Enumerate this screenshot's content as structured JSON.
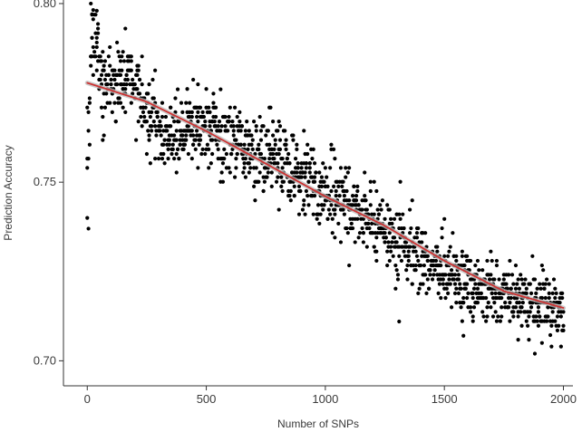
{
  "chart_data": {
    "type": "scatter",
    "title": "",
    "xlabel": "Number of SNPs",
    "ylabel": "Prediction Accuracy",
    "xlim": [
      -100,
      2040
    ],
    "ylim": [
      0.693,
      0.801
    ],
    "xticks": [
      0,
      500,
      1000,
      1500,
      2000
    ],
    "yticks": [
      0.7,
      0.75,
      0.8
    ],
    "xtick_labels": [
      "0",
      "500",
      "1000",
      "1500",
      "2000"
    ],
    "ytick_labels": [
      "0.70",
      "0.75",
      "0.80"
    ],
    "grid": false,
    "legend": "none",
    "colors": {
      "points": "#000000",
      "trend": "#cc3333",
      "band": "#bbbbbb"
    },
    "series": [
      {
        "role": "points",
        "x_step": 5,
        "x_start": 0,
        "x_end": 2000,
        "profile": [
          [
            0,
            0.756
          ],
          [
            10,
            0.771
          ],
          [
            20,
            0.789
          ],
          [
            40,
            0.786
          ],
          [
            60,
            0.779
          ],
          [
            100,
            0.776
          ],
          [
            150,
            0.78
          ],
          [
            190,
            0.778
          ],
          [
            220,
            0.775
          ],
          [
            250,
            0.769
          ],
          [
            300,
            0.765
          ],
          [
            350,
            0.762
          ],
          [
            400,
            0.764
          ],
          [
            450,
            0.766
          ],
          [
            500,
            0.764
          ],
          [
            550,
            0.764
          ],
          [
            600,
            0.762
          ],
          [
            650,
            0.76
          ],
          [
            700,
            0.758
          ],
          [
            750,
            0.758
          ],
          [
            800,
            0.756
          ],
          [
            850,
            0.753
          ],
          [
            900,
            0.752
          ],
          [
            950,
            0.75
          ],
          [
            1000,
            0.747
          ],
          [
            1050,
            0.745
          ],
          [
            1100,
            0.743
          ],
          [
            1150,
            0.741
          ],
          [
            1200,
            0.739
          ],
          [
            1250,
            0.737
          ],
          [
            1300,
            0.734
          ],
          [
            1350,
            0.732
          ],
          [
            1400,
            0.729
          ],
          [
            1450,
            0.727
          ],
          [
            1500,
            0.725
          ],
          [
            1550,
            0.723
          ],
          [
            1600,
            0.721
          ],
          [
            1650,
            0.72
          ],
          [
            1700,
            0.72
          ],
          [
            1750,
            0.719
          ],
          [
            1800,
            0.718
          ],
          [
            1850,
            0.717
          ],
          [
            1900,
            0.717
          ],
          [
            1950,
            0.716
          ],
          [
            2000,
            0.715
          ]
        ],
        "spread": [
          [
            0,
            0.006
          ],
          [
            60,
            0.006
          ],
          [
            200,
            0.004
          ],
          [
            300,
            0.005
          ],
          [
            1000,
            0.005
          ],
          [
            1600,
            0.005
          ],
          [
            2000,
            0.004
          ]
        ],
        "outliers": [
          [
            0,
            0.74
          ],
          [
            5,
            0.737
          ],
          [
            15,
            0.8
          ],
          [
            20,
            0.797
          ],
          [
            40,
            0.798
          ],
          [
            160,
            0.793
          ],
          [
            380,
            0.776
          ],
          [
            560,
            0.776
          ],
          [
            1310,
            0.711
          ],
          [
            1580,
            0.707
          ],
          [
            1880,
            0.702
          ],
          [
            1910,
            0.705
          ],
          [
            1950,
            0.704
          ],
          [
            1990,
            0.704
          ]
        ]
      },
      {
        "role": "trend",
        "x": [
          0,
          250,
          500,
          750,
          1000,
          1250,
          1500,
          1750,
          2000
        ],
        "values": [
          0.7778,
          0.7725,
          0.7643,
          0.7552,
          0.746,
          0.7378,
          0.728,
          0.7195,
          0.7148
        ]
      }
    ]
  }
}
